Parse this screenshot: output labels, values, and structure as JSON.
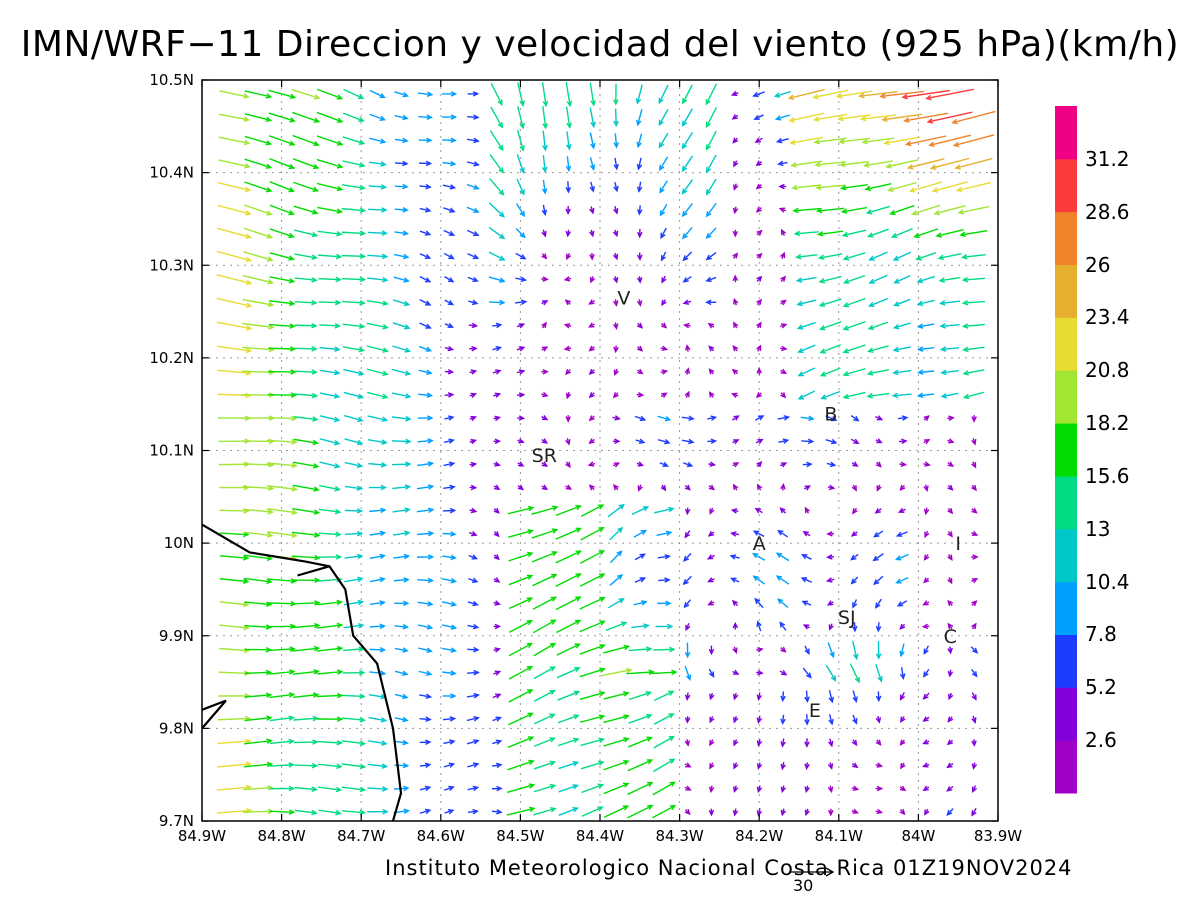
{
  "title": "IMN/WRF−11 Direccion y velocidad del viento (925 hPa)(km/h)",
  "credit": "Instituto Meteorologico Nacional Costa Rica 01Z19NOV2024",
  "reference_vector_label": "30",
  "map": {
    "lon_range": [
      -84.9,
      -83.9
    ],
    "lat_range": [
      9.7,
      10.5
    ],
    "grid": true,
    "x_ticks": [
      "84.9W",
      "84.8W",
      "84.7W",
      "84.6W",
      "84.5W",
      "84.4W",
      "84.3W",
      "84.2W",
      "84.1W",
      "84W",
      "83.9W"
    ],
    "y_ticks": [
      "10.5N",
      "10.4N",
      "10.3N",
      "10.2N",
      "10.1N",
      "10N",
      "9.9N",
      "9.8N",
      "9.7N"
    ],
    "places": [
      {
        "label": "V",
        "lon": -84.37,
        "lat": 10.265
      },
      {
        "label": "B",
        "lon": -84.11,
        "lat": 10.14
      },
      {
        "label": "SR",
        "lon": -84.47,
        "lat": 10.095
      },
      {
        "label": "A",
        "lon": -84.2,
        "lat": 10.0
      },
      {
        "label": "I",
        "lon": -83.95,
        "lat": 10.0
      },
      {
        "label": "SJ",
        "lon": -84.09,
        "lat": 9.92
      },
      {
        "label": "C",
        "lon": -83.96,
        "lat": 9.9
      },
      {
        "label": "E",
        "lon": -84.13,
        "lat": 9.82
      }
    ],
    "coastline": [
      [
        -84.9,
        10.02
      ],
      [
        -84.84,
        9.99
      ],
      [
        -84.77,
        9.98
      ],
      [
        -84.74,
        9.975
      ],
      [
        -84.78,
        9.965
      ],
      [
        -84.74,
        9.975
      ],
      [
        -84.72,
        9.95
      ],
      [
        -84.71,
        9.9
      ],
      [
        -84.68,
        9.87
      ],
      [
        -84.66,
        9.8
      ],
      [
        -84.65,
        9.73
      ],
      [
        -84.66,
        9.7
      ]
    ],
    "coastline2": [
      [
        -84.9,
        9.8
      ],
      [
        -84.87,
        9.83
      ],
      [
        -84.9,
        9.82
      ]
    ]
  },
  "colorbar": {
    "bands": [
      {
        "color": "#a000c8",
        "label": "2.6"
      },
      {
        "color": "#8200dc",
        "label": "5.2"
      },
      {
        "color": "#1e3cff",
        "label": "7.8"
      },
      {
        "color": "#00a0ff",
        "label": "10.4"
      },
      {
        "color": "#00c8c8",
        "label": "13"
      },
      {
        "color": "#00dc82",
        "label": "15.6"
      },
      {
        "color": "#00dc00",
        "label": "18.2"
      },
      {
        "color": "#a0e632",
        "label": "20.8"
      },
      {
        "color": "#e6dc32",
        "label": "23.4"
      },
      {
        "color": "#e6af2d",
        "label": "26"
      },
      {
        "color": "#f08228",
        "label": "28.6"
      },
      {
        "color": "#fa3c3c",
        "label": "31.2"
      },
      {
        "color": "#f00082",
        "label": ""
      }
    ]
  }
}
